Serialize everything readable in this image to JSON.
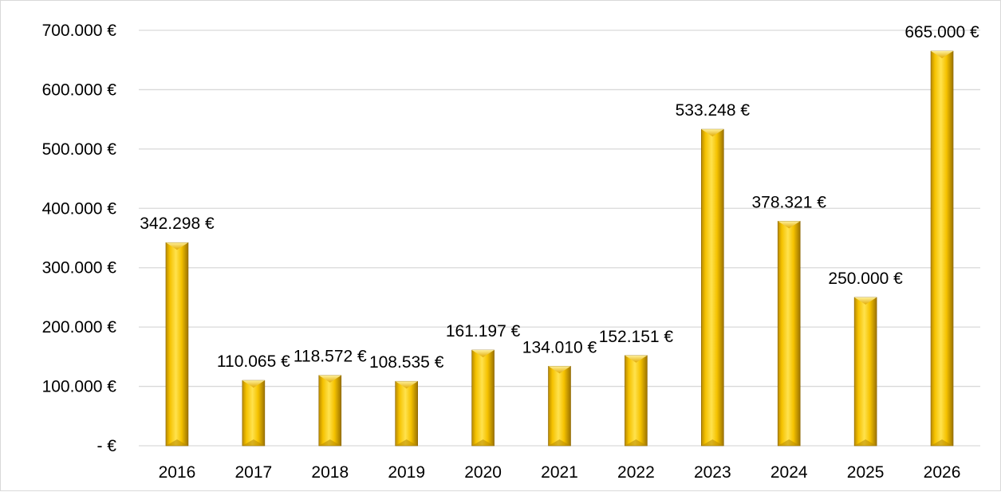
{
  "chart_data": {
    "type": "bar",
    "title": "",
    "xlabel": "",
    "ylabel": "",
    "categories": [
      "2016",
      "2017",
      "2018",
      "2019",
      "2020",
      "2021",
      "2022",
      "2023",
      "2024",
      "2025",
      "2026"
    ],
    "values": [
      342298,
      110065,
      118572,
      108535,
      161197,
      134010,
      152151,
      533248,
      378321,
      250000,
      665000
    ],
    "data_labels": [
      "342.298 €",
      "110.065 €",
      "118.572 €",
      "108.535 €",
      "161.197 €",
      "134.010 €",
      "152.151 €",
      "533.248 €",
      "378.321 €",
      "250.000 €",
      "665.000 €"
    ],
    "ylim": [
      0,
      700000
    ],
    "yticks": [
      0,
      100000,
      200000,
      300000,
      400000,
      500000,
      600000,
      700000
    ],
    "ytick_labels": [
      "-  €",
      "100.000 €",
      "200.000 €",
      "300.000 €",
      "400.000 €",
      "500.000 €",
      "600.000 €",
      "700.000 €"
    ],
    "grid": true,
    "legend": "none",
    "colors": {
      "bar_light": "#FFE24D",
      "bar_main": "#F5C200",
      "bar_dark": "#B88A00",
      "bar_edge": "#8A6400",
      "grid": "#d9d9d9"
    }
  }
}
